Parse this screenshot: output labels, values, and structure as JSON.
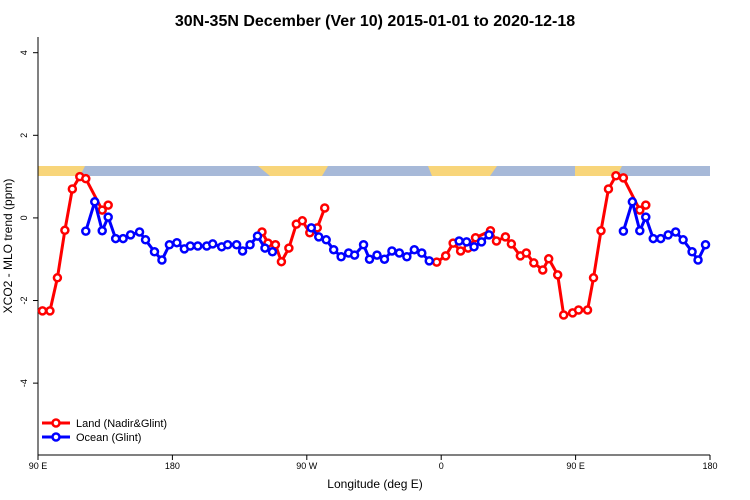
{
  "chart_data": {
    "type": "line",
    "title": "30N-35N December (Ver 10)   2015-01-01 to 2020-12-18",
    "x_label": "Longitude (deg E)",
    "y_label": "XCO2 - MLO trend (ppm)",
    "xlim": [
      90,
      540
    ],
    "ylim": [
      -5.74,
      4.38
    ],
    "xticks": [
      {
        "value": 90,
        "label": "90 E"
      },
      180,
      {
        "value": 270,
        "label": "90 W"
      },
      {
        "value": 360,
        "label": "0"
      },
      {
        "value": 450,
        "label": "90 E"
      },
      {
        "value": 540,
        "label": "180"
      }
    ],
    "yticks": [
      -4,
      -2,
      0,
      2,
      4
    ],
    "legend": "bottom-left",
    "series": [
      {
        "name": "Land (Nadir&Glint)",
        "color": "#ff0000",
        "x": [
          93,
          98,
          103,
          108,
          113,
          118,
          122,
          133,
          137,
          null,
          240,
          244,
          249,
          253,
          258,
          263,
          267,
          272,
          277,
          282,
          null,
          357,
          363,
          368,
          373,
          378,
          383,
          393,
          397,
          403,
          407,
          413,
          417,
          422,
          428,
          432,
          438,
          442,
          448,
          452,
          458,
          462,
          467,
          472,
          477,
          482,
          493,
          497
        ],
        "values": [
          -2.25,
          -2.25,
          -1.45,
          -0.3,
          0.7,
          1.0,
          0.95,
          0.19,
          0.31,
          null,
          -0.34,
          -0.61,
          -0.65,
          -1.06,
          -0.73,
          -0.15,
          -0.07,
          -0.36,
          -0.24,
          0.24,
          null,
          -1.07,
          -0.92,
          -0.61,
          -0.8,
          -0.73,
          -0.48,
          -0.31,
          -0.56,
          -0.46,
          -0.63,
          -0.92,
          -0.85,
          -1.09,
          -1.26,
          -0.99,
          -1.38,
          -2.35,
          -2.3,
          -2.23,
          -2.23,
          -1.45,
          -0.31,
          0.7,
          1.02,
          0.97,
          0.19,
          0.31
        ]
      },
      {
        "name": "Ocean (Glint)",
        "color": "#0000ff",
        "x": [
          122,
          128,
          133,
          137,
          142,
          147,
          152,
          158,
          162,
          168,
          173,
          178,
          183,
          188,
          192,
          197,
          203,
          207,
          213,
          217,
          223,
          227,
          232,
          237,
          242,
          247,
          null,
          273,
          278,
          283,
          288,
          293,
          298,
          302,
          308,
          312,
          317,
          322,
          327,
          332,
          337,
          342,
          347,
          352,
          null,
          372,
          377,
          382,
          387,
          392,
          null,
          482,
          488,
          493,
          497,
          502,
          507,
          512,
          517,
          522,
          528,
          532,
          537
        ],
        "values": [
          -0.32,
          0.39,
          -0.31,
          0.02,
          -0.5,
          -0.5,
          -0.41,
          -0.34,
          -0.53,
          -0.82,
          -1.02,
          -0.65,
          -0.6,
          -0.75,
          -0.68,
          -0.68,
          -0.68,
          -0.63,
          -0.7,
          -0.65,
          -0.65,
          -0.8,
          -0.65,
          -0.44,
          -0.73,
          -0.82,
          null,
          -0.24,
          -0.46,
          -0.53,
          -0.77,
          -0.94,
          -0.85,
          -0.9,
          -0.65,
          -1.0,
          -0.9,
          -1.0,
          -0.8,
          -0.85,
          -0.94,
          -0.77,
          -0.85,
          -1.04,
          null,
          -0.56,
          -0.58,
          -0.7,
          -0.58,
          -0.41,
          null,
          -0.32,
          0.39,
          -0.31,
          0.02,
          -0.5,
          -0.5,
          -0.41,
          -0.34,
          -0.53,
          -0.82,
          -1.02,
          -0.65
        ]
      }
    ]
  }
}
